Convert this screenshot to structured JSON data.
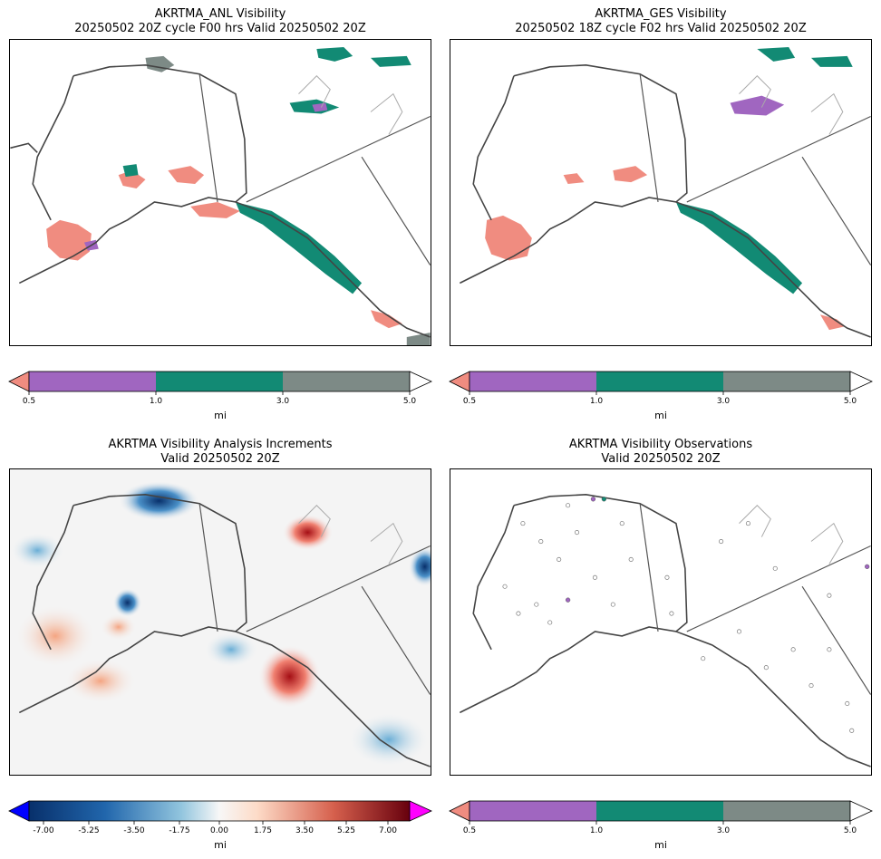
{
  "panels": [
    {
      "title_line1": "AKRTMA_ANL Visibility",
      "title_line2": "20250502 20Z cycle F00 hrs Valid 20250502 20Z",
      "colorbar": {
        "ticks": [
          "0.5",
          "1.0",
          "3.0",
          "5.0"
        ],
        "unit": "mi"
      }
    },
    {
      "title_line1": "AKRTMA_GES Visibility",
      "title_line2": "20250502 18Z cycle F02 hrs Valid 20250502 20Z",
      "colorbar": {
        "ticks": [
          "0.5",
          "1.0",
          "3.0",
          "5.0"
        ],
        "unit": "mi"
      }
    },
    {
      "title_line1": "AKRTMA Visibility Analysis Increments",
      "title_line2": "Valid 20250502 20Z",
      "colorbar": {
        "ticks": [
          "-7.00",
          "-5.25",
          "-3.50",
          "-1.75",
          "0.00",
          "1.75",
          "3.50",
          "5.25",
          "7.00"
        ],
        "unit": "mi"
      }
    },
    {
      "title_line1": "AKRTMA Visibility Observations",
      "title_line2": "Valid 20250502 20Z",
      "colorbar": {
        "ticks": [
          "0.5",
          "1.0",
          "3.0",
          "5.0"
        ],
        "unit": "mi"
      }
    }
  ],
  "visibility_classes": [
    {
      "range": "<0.5",
      "color": "#f08c80"
    },
    {
      "range": "0.5-1.0",
      "color": "#a066c0"
    },
    {
      "range": "1.0-3.0",
      "color": "#128a74"
    },
    {
      "range": "3.0-5.0",
      "color": "#7d8a86"
    },
    {
      "range": ">5.0",
      "color": "#ffffff"
    }
  ],
  "increment_colormap": {
    "under": "#0000ff",
    "over": "#ff00ff",
    "low": "#08306b",
    "mid": "#f7f7f7",
    "high": "#67000d"
  }
}
